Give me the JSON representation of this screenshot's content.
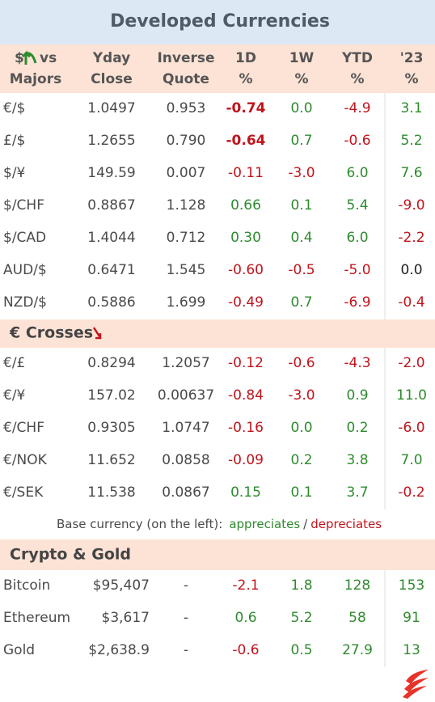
{
  "title": "Developed Currencies",
  "header": {
    "symbol": "$",
    "vs": "vs",
    "majors": "Majors",
    "columns": [
      [
        "Yday",
        "Close"
      ],
      [
        "Inverse",
        "Quote"
      ],
      [
        "1D",
        "%"
      ],
      [
        "1W",
        "%"
      ],
      [
        "YTD",
        "%"
      ],
      [
        "'23",
        "%"
      ]
    ]
  },
  "majors": {
    "rows": [
      [
        "€/$",
        "1.0497",
        "0.953",
        "-0.74",
        "0.0",
        "-4.9",
        "3.1"
      ],
      [
        "£/$",
        "1.2655",
        "0.790",
        "-0.64",
        "0.7",
        "-0.6",
        "5.2"
      ],
      [
        "$/¥",
        "149.59",
        "0.007",
        "-0.11",
        "-3.0",
        "6.0",
        "7.6"
      ],
      [
        "$/CHF",
        "0.8867",
        "1.128",
        "0.66",
        "0.1",
        "5.4",
        "-9.0"
      ],
      [
        "$/CAD",
        "1.4044",
        "0.712",
        "0.30",
        "0.4",
        "6.0",
        "-2.2"
      ],
      [
        "AUD/$",
        "0.6471",
        "1.545",
        "-0.60",
        "-0.5",
        "-5.0",
        "0.0"
      ],
      [
        "NZD/$",
        "0.5886",
        "1.699",
        "-0.49",
        "0.7",
        "-6.9",
        "-0.4"
      ]
    ],
    "colors": [
      [
        "red-bold",
        "green",
        "red",
        "green"
      ],
      [
        "red-bold",
        "green",
        "red",
        "green"
      ],
      [
        "red",
        "red",
        "green",
        "green"
      ],
      [
        "green",
        "green",
        "green",
        "red"
      ],
      [
        "green",
        "green",
        "green",
        "red"
      ],
      [
        "red",
        "red",
        "red",
        "black"
      ],
      [
        "red",
        "green",
        "red",
        "red"
      ]
    ]
  },
  "crosses": {
    "title": "€ Crosses",
    "rows": [
      [
        "€/£",
        "0.8294",
        "1.2057",
        "-0.12",
        "-0.6",
        "-4.3",
        "-2.0"
      ],
      [
        "€/¥",
        "157.02",
        "0.00637",
        "-0.84",
        "-3.0",
        "0.9",
        "11.0"
      ],
      [
        "€/CHF",
        "0.9305",
        "1.0747",
        "-0.16",
        "0.0",
        "0.2",
        "-6.0"
      ],
      [
        "€/NOK",
        "11.652",
        "0.0858",
        "-0.09",
        "0.2",
        "3.8",
        "7.0"
      ],
      [
        "€/SEK",
        "11.538",
        "0.0867",
        "0.15",
        "0.1",
        "3.7",
        "-0.2"
      ]
    ],
    "colors": [
      [
        "red",
        "red",
        "red",
        "red"
      ],
      [
        "red",
        "red",
        "green",
        "green"
      ],
      [
        "red",
        "green",
        "green",
        "red"
      ],
      [
        "red",
        "green",
        "green",
        "green"
      ],
      [
        "green",
        "green",
        "green",
        "red"
      ]
    ]
  },
  "legend": {
    "prefix": "Base currency (on the left):",
    "appreciates": "appreciates",
    "separator": "/",
    "depreciates": "depreciates"
  },
  "crypto": {
    "title": "Crypto & Gold",
    "rows": [
      [
        "Bitcoin",
        "$95,407",
        "-",
        "-2.1",
        "1.8",
        "128",
        "153"
      ],
      [
        "Ethereum",
        "$3,617",
        "-",
        "0.6",
        "5.2",
        "58",
        "91"
      ],
      [
        "Gold",
        "$2,638.9",
        "-",
        "-0.6",
        "0.5",
        "27.9",
        "13"
      ]
    ],
    "colors": [
      [
        "red",
        "green",
        "green",
        "green"
      ],
      [
        "green",
        "green",
        "green",
        "green"
      ],
      [
        "red",
        "green",
        "green",
        "green"
      ]
    ]
  }
}
